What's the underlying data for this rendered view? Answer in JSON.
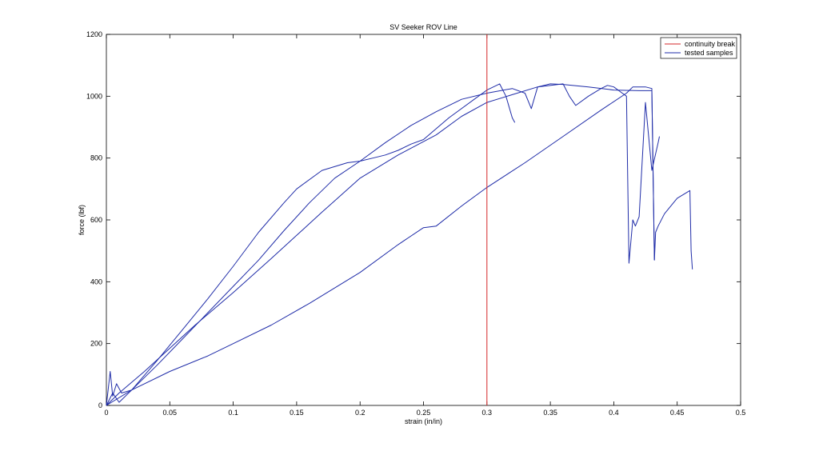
{
  "chart_data": {
    "type": "line",
    "title": "SV Seeker ROV Line",
    "xlabel": "strain (in/in)",
    "ylabel": "force (lbf)",
    "xlim": [
      0,
      0.5
    ],
    "ylim": [
      0,
      1200
    ],
    "xticks": [
      "0",
      "0.05",
      "0.1",
      "0.15",
      "0.2",
      "0.25",
      "0.3",
      "0.35",
      "0.4",
      "0.45",
      "0.5"
    ],
    "yticks": [
      "0",
      "200",
      "400",
      "600",
      "800",
      "1000",
      "1200"
    ],
    "grid": false,
    "legend_position": "top-right",
    "legend": [
      "continuity break",
      "tested samples"
    ],
    "colors": {
      "break": "#d62728",
      "samples": "#1f2ca8"
    },
    "vline": {
      "name": "continuity break",
      "x": 0.3
    },
    "series": [
      {
        "x": [
          0,
          0.003,
          0.005,
          0.008,
          0.012,
          0.02,
          0.04,
          0.06,
          0.08,
          0.1,
          0.12,
          0.14,
          0.15,
          0.17,
          0.19,
          0.2,
          0.21,
          0.22,
          0.23,
          0.24,
          0.25,
          0.27,
          0.29,
          0.3,
          0.31,
          0.315,
          0.32,
          0.322
        ],
        "y": [
          0,
          110,
          30,
          70,
          40,
          50,
          145,
          245,
          345,
          450,
          560,
          655,
          700,
          760,
          785,
          790,
          800,
          810,
          825,
          845,
          860,
          930,
          990,
          1020,
          1040,
          1000,
          930,
          915
        ]
      },
      {
        "x": [
          0,
          0.005,
          0.01,
          0.02,
          0.04,
          0.06,
          0.08,
          0.1,
          0.12,
          0.14,
          0.16,
          0.18,
          0.2,
          0.22,
          0.24,
          0.26,
          0.28,
          0.3,
          0.32,
          0.33,
          0.335,
          0.34,
          0.36,
          0.365,
          0.37,
          0.38,
          0.39,
          0.395,
          0.4,
          0.405,
          0.41,
          0.412,
          0.415,
          0.417,
          0.42,
          0.425,
          0.43,
          0.435,
          0.436
        ],
        "y": [
          0,
          40,
          10,
          50,
          130,
          215,
          300,
          385,
          470,
          565,
          655,
          735,
          790,
          850,
          905,
          950,
          990,
          1010,
          1025,
          1010,
          960,
          1030,
          1040,
          1000,
          970,
          1000,
          1025,
          1035,
          1030,
          1015,
          1000,
          460,
          600,
          580,
          610,
          980,
          760,
          850,
          870
        ]
      },
      {
        "x": [
          0,
          0.01,
          0.03,
          0.05,
          0.07,
          0.1,
          0.13,
          0.15,
          0.17,
          0.2,
          0.23,
          0.26,
          0.28,
          0.3,
          0.32,
          0.34,
          0.35,
          0.36,
          0.38,
          0.4,
          0.42,
          0.43,
          0.432
        ],
        "y": [
          0,
          40,
          110,
          185,
          260,
          365,
          475,
          550,
          625,
          735,
          810,
          875,
          935,
          980,
          1005,
          1030,
          1040,
          1038,
          1030,
          1020,
          1018,
          1018,
          470
        ]
      },
      {
        "x": [
          0,
          0.02,
          0.05,
          0.08,
          0.1,
          0.13,
          0.16,
          0.2,
          0.23,
          0.25,
          0.26,
          0.28,
          0.3,
          0.33,
          0.36,
          0.39,
          0.41,
          0.415,
          0.42,
          0.425,
          0.43,
          0.432,
          0.433,
          0.435,
          0.44,
          0.45,
          0.46,
          0.461,
          0.462
        ],
        "y": [
          0,
          50,
          110,
          160,
          200,
          260,
          330,
          430,
          520,
          575,
          580,
          645,
          705,
          785,
          870,
          955,
          1010,
          1030,
          1030,
          1030,
          1025,
          470,
          560,
          580,
          620,
          670,
          695,
          500,
          440
        ]
      }
    ]
  }
}
